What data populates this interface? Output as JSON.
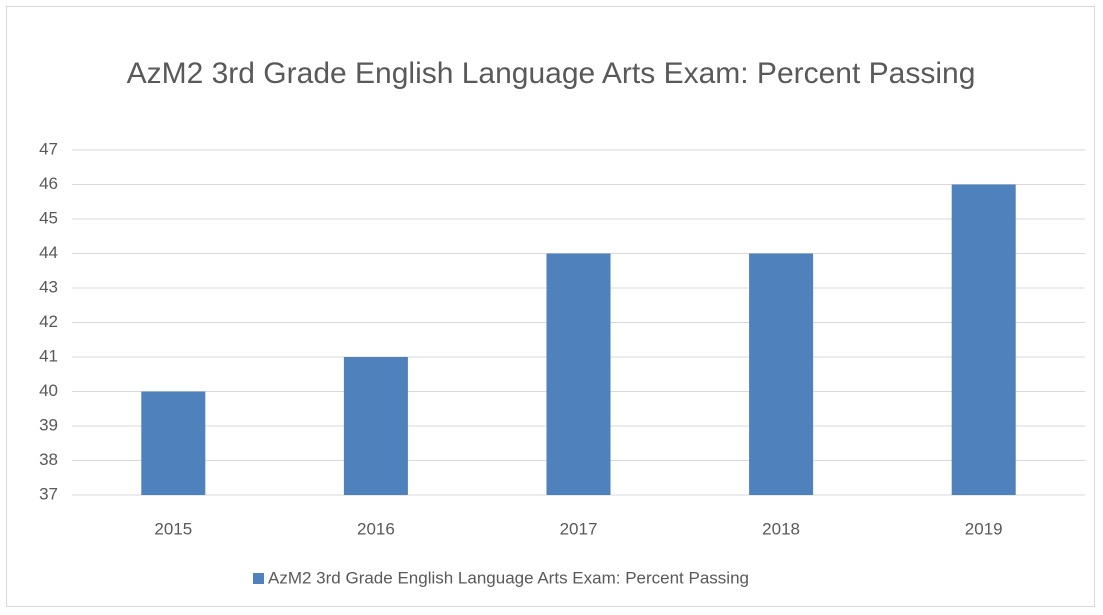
{
  "chart_data": {
    "type": "bar",
    "title": "AzM2 3rd Grade English Language Arts Exam: Percent Passing",
    "categories": [
      "2015",
      "2016",
      "2017",
      "2018",
      "2019"
    ],
    "series": [
      {
        "name": "AzM2 3rd Grade English Language Arts Exam: Percent Passing",
        "color": "#4f81bd",
        "values": [
          40,
          41,
          44,
          44,
          46
        ]
      }
    ],
    "ylim": [
      37,
      47
    ],
    "yticks": [
      37,
      38,
      39,
      40,
      41,
      42,
      43,
      44,
      45,
      46,
      47
    ],
    "grid": true,
    "legend": "bottom"
  }
}
